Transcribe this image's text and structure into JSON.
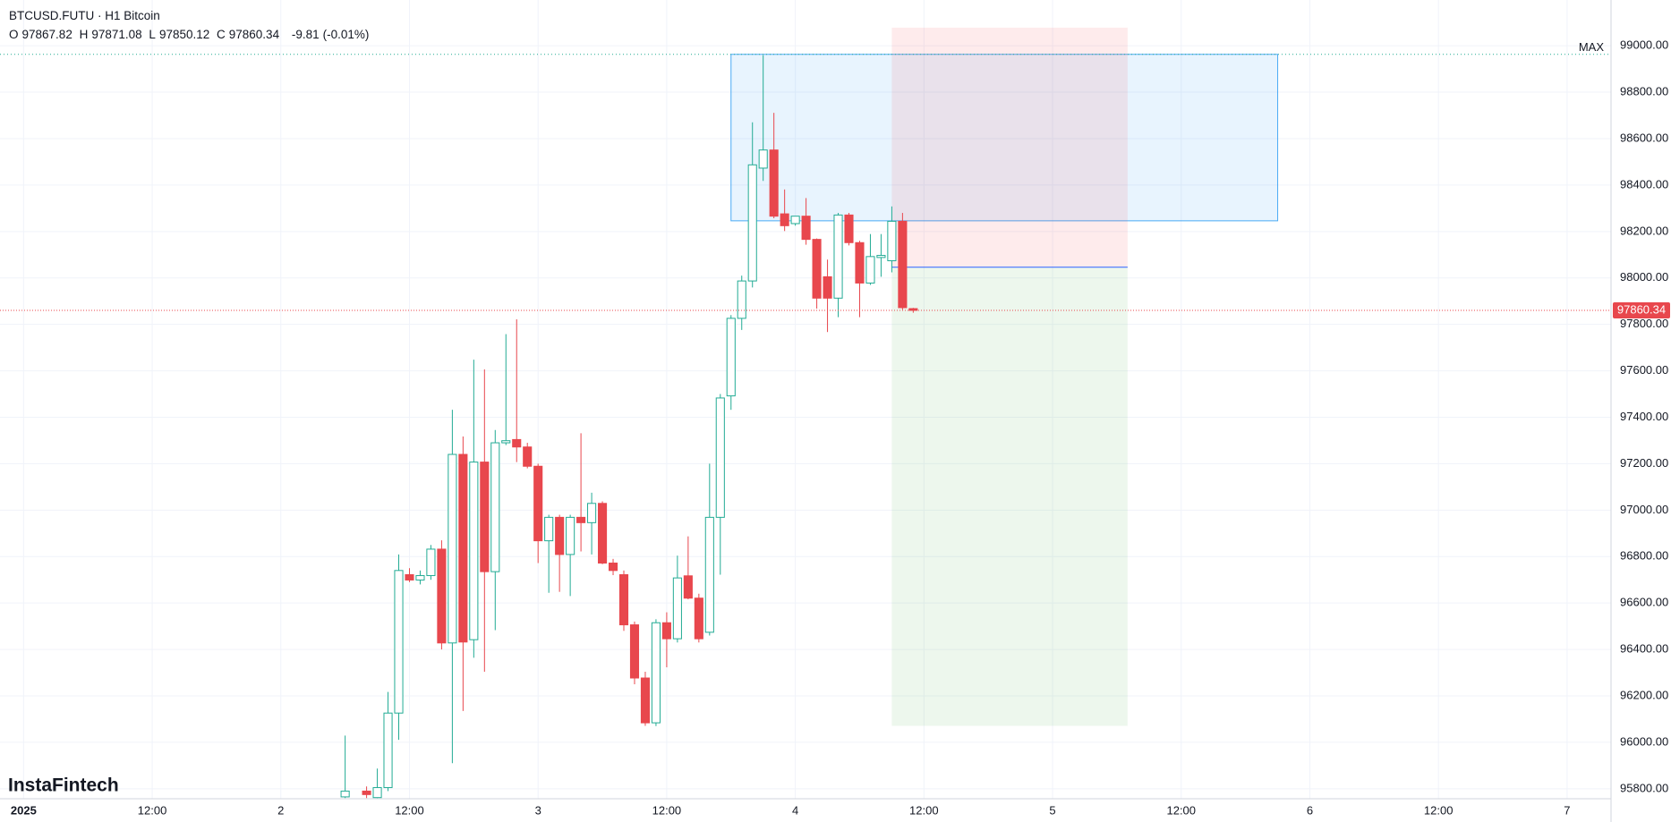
{
  "header": {
    "symbol": "BTCUSD.FUTU · H1 Bitcoin",
    "ohlc_labels": [
      "O",
      "H",
      "L",
      "C"
    ],
    "change": -9.81,
    "change_pct": "(-0.01%)"
  },
  "watermark": "InstaFintech",
  "chart_data": {
    "type": "candlestick",
    "up_color": "#22ab94",
    "down_color": "#e8474d",
    "grid": true,
    "x": [
      30,
      32,
      33,
      34,
      35,
      36,
      37,
      38,
      39,
      40,
      41,
      42,
      43,
      44,
      45,
      46,
      47,
      48,
      49,
      50,
      51,
      52,
      53,
      54,
      55,
      56,
      57,
      58,
      59,
      60,
      61,
      62,
      63,
      64,
      65,
      66,
      67,
      68,
      69,
      70,
      71,
      72,
      73,
      74,
      75,
      76,
      77,
      78,
      79,
      80,
      81,
      82,
      83
    ],
    "open": [
      95765,
      95790,
      95762,
      95805,
      96126,
      96722,
      96699,
      96718,
      96832,
      96428,
      97240,
      96442,
      97207,
      96735,
      97290,
      97304,
      97272,
      97189,
      96868,
      96969,
      96809,
      96969,
      96946,
      97029,
      96772,
      96722,
      96506,
      96277,
      96084,
      96515,
      96446,
      96717,
      96621,
      96474,
      96969,
      97492,
      97826,
      97987,
      98473,
      98551,
      98276,
      98234,
      98266,
      98166,
      98005,
      97913,
      98271,
      98152,
      97978,
      98088,
      98074,
      98244,
      97867.82
    ],
    "high": [
      96029,
      95810,
      95887,
      96217,
      96809,
      96750,
      96740,
      96850,
      96870,
      97432,
      97317,
      97648,
      97606,
      97345,
      97758,
      97822,
      97290,
      97200,
      96980,
      96980,
      96980,
      97331,
      97075,
      97038,
      96790,
      96740,
      96520,
      96304,
      96530,
      96560,
      96804,
      96887,
      96640,
      97200,
      97500,
      97840,
      98010,
      98670,
      98959,
      98711,
      98381,
      98266,
      98344,
      98170,
      98079,
      98280,
      98280,
      98160,
      98189,
      98189,
      98308,
      98280,
      97871.08
    ],
    "low": [
      95760,
      95760,
      95760,
      95790,
      96011,
      96690,
      96680,
      96700,
      96400,
      95910,
      96135,
      96364,
      96304,
      96483,
      97280,
      97207,
      97180,
      96772,
      96644,
      96648,
      96630,
      96822,
      96809,
      96767,
      96720,
      96480,
      96250,
      96071,
      96070,
      96323,
      96430,
      96616,
      96430,
      96460,
      96722,
      97432,
      97776,
      97959,
      98418,
      98257,
      98202,
      98225,
      98143,
      97868,
      97767,
      97831,
      98140,
      97831,
      97970,
      98005,
      98024,
      97863,
      97850.12
    ],
    "close": [
      95790,
      95775,
      95805,
      96126,
      96740,
      96699,
      96718,
      96832,
      96428,
      97240,
      96432,
      97207,
      96735,
      97290,
      97299,
      97272,
      97189,
      96868,
      96969,
      96809,
      96969,
      96946,
      97029,
      96772,
      96740,
      96506,
      96277,
      96084,
      96515,
      96446,
      96708,
      96621,
      96446,
      96969,
      97483,
      97826,
      97987,
      98487,
      98551,
      98266,
      98225,
      98266,
      98166,
      97913,
      97913,
      98271,
      98152,
      97978,
      98092,
      98097,
      98244,
      97872,
      97860.34
    ],
    "xlim": [
      -2.2,
      148.1
    ],
    "ylim": [
      95757,
      99197
    ],
    "xticks": [
      {
        "value": 0,
        "label": "2025"
      },
      {
        "value": 12,
        "label": "12:00"
      },
      {
        "value": 24,
        "label": "2"
      },
      {
        "value": 36,
        "label": "12:00"
      },
      {
        "value": 48,
        "label": "3"
      },
      {
        "value": 60,
        "label": "12:00"
      },
      {
        "value": 72,
        "label": "4"
      },
      {
        "value": 84,
        "label": "12:00"
      },
      {
        "value": 96,
        "label": "5"
      },
      {
        "value": 108,
        "label": "12:00"
      },
      {
        "value": 120,
        "label": "6"
      },
      {
        "value": 132,
        "label": "12:00"
      },
      {
        "value": 144,
        "label": "7"
      }
    ],
    "yticks": [
      {
        "value": 95800,
        "label": "95800.00"
      },
      {
        "value": 96000,
        "label": "96000.00"
      },
      {
        "value": 96200,
        "label": "96200.00"
      },
      {
        "value": 96400,
        "label": "96400.00"
      },
      {
        "value": 96600,
        "label": "96600.00"
      },
      {
        "value": 96800,
        "label": "96800.00"
      },
      {
        "value": 97000,
        "label": "97000.00"
      },
      {
        "value": 97200,
        "label": "97200.00"
      },
      {
        "value": 97400,
        "label": "97400.00"
      },
      {
        "value": 97600,
        "label": "97600.00"
      },
      {
        "value": 97800,
        "label": "97800.00"
      },
      {
        "value": 98000,
        "label": "98000.00"
      },
      {
        "value": 98200,
        "label": "98200.00"
      },
      {
        "value": 98400,
        "label": "98400.00"
      },
      {
        "value": 98600,
        "label": "98600.00"
      },
      {
        "value": 98800,
        "label": "98800.00"
      },
      {
        "value": 99000,
        "label": "99000.00"
      }
    ],
    "regions": [
      {
        "xlim": [
          66,
          117
        ],
        "ylim": [
          98246,
          98963
        ],
        "color": "#2196f3"
      },
      {
        "xlim": [
          81,
          103
        ],
        "ylim": [
          98046,
          99078
        ],
        "color": "#f23645"
      },
      {
        "xlim": [
          81,
          103
        ],
        "ylim": [
          96071,
          98046
        ],
        "color": "#4caf50"
      }
    ],
    "max_line": {
      "value": 98963,
      "label": "MAX",
      "color": "#22ab94"
    }
  }
}
